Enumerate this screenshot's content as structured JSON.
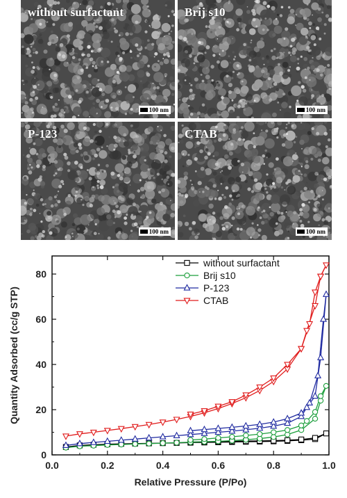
{
  "sem_panels": [
    {
      "label": "without surfactant",
      "scale": "100 nm"
    },
    {
      "label": "Brij s10",
      "scale": "100 nm"
    },
    {
      "label": "P-123",
      "scale": "100 nm"
    },
    {
      "label": "CTAB",
      "scale": "100 nm"
    }
  ],
  "chart_data": {
    "type": "line",
    "xlabel": "Relative Pressure (P/Po)",
    "ylabel": "Quantity Adsorbed (cc/g STP)",
    "xlim": [
      0.0,
      1.0
    ],
    "ylim": [
      0,
      88
    ],
    "x_ticks": [
      "0.0",
      "0.2",
      "0.4",
      "0.6",
      "0.8",
      "1.0"
    ],
    "y_ticks": [
      "0",
      "20",
      "40",
      "60",
      "80"
    ],
    "legend_position": "top-right",
    "series": [
      {
        "name": "without surfactant",
        "color": "#000000",
        "marker": "square",
        "adsorption": [
          [
            0.05,
            3.5
          ],
          [
            0.1,
            4.2
          ],
          [
            0.15,
            4.5
          ],
          [
            0.2,
            4.7
          ],
          [
            0.25,
            4.9
          ],
          [
            0.3,
            5.0
          ],
          [
            0.35,
            5.1
          ],
          [
            0.4,
            5.2
          ],
          [
            0.45,
            5.3
          ],
          [
            0.5,
            5.4
          ],
          [
            0.55,
            5.5
          ],
          [
            0.6,
            5.6
          ],
          [
            0.65,
            5.7
          ],
          [
            0.7,
            5.8
          ],
          [
            0.75,
            5.9
          ],
          [
            0.8,
            6.0
          ],
          [
            0.85,
            6.2
          ],
          [
            0.9,
            6.5
          ],
          [
            0.95,
            7.0
          ],
          [
            0.99,
            9.5
          ]
        ],
        "desorption": [
          [
            0.99,
            9.5
          ],
          [
            0.95,
            7.5
          ],
          [
            0.9,
            6.8
          ],
          [
            0.85,
            6.5
          ],
          [
            0.8,
            6.3
          ],
          [
            0.75,
            6.2
          ],
          [
            0.7,
            6.1
          ],
          [
            0.65,
            6.0
          ],
          [
            0.6,
            5.9
          ],
          [
            0.55,
            5.8
          ],
          [
            0.5,
            5.7
          ]
        ]
      },
      {
        "name": "Brij s10",
        "color": "#1a9e3a",
        "marker": "circle",
        "adsorption": [
          [
            0.05,
            3.2
          ],
          [
            0.1,
            3.8
          ],
          [
            0.15,
            4.1
          ],
          [
            0.2,
            4.4
          ],
          [
            0.25,
            4.6
          ],
          [
            0.3,
            4.8
          ],
          [
            0.35,
            5.0
          ],
          [
            0.4,
            5.2
          ],
          [
            0.45,
            5.4
          ],
          [
            0.5,
            5.6
          ],
          [
            0.55,
            5.8
          ],
          [
            0.6,
            6.0
          ],
          [
            0.65,
            6.3
          ],
          [
            0.7,
            6.7
          ],
          [
            0.75,
            7.2
          ],
          [
            0.8,
            7.9
          ],
          [
            0.85,
            9.0
          ],
          [
            0.9,
            11.0
          ],
          [
            0.95,
            16.0
          ],
          [
            0.97,
            24.0
          ],
          [
            0.99,
            30.5
          ]
        ],
        "desorption": [
          [
            0.99,
            30.5
          ],
          [
            0.97,
            26.0
          ],
          [
            0.95,
            19.0
          ],
          [
            0.92,
            15.0
          ],
          [
            0.9,
            13.0
          ],
          [
            0.85,
            11.0
          ],
          [
            0.8,
            10.0
          ],
          [
            0.75,
            9.2
          ],
          [
            0.7,
            8.6
          ],
          [
            0.65,
            8.0
          ],
          [
            0.6,
            7.5
          ],
          [
            0.55,
            7.0
          ],
          [
            0.5,
            6.6
          ]
        ]
      },
      {
        "name": "P-123",
        "color": "#1f2aa0",
        "marker": "triangle-up",
        "adsorption": [
          [
            0.05,
            4.2
          ],
          [
            0.1,
            5.0
          ],
          [
            0.15,
            5.5
          ],
          [
            0.2,
            6.0
          ],
          [
            0.25,
            6.5
          ],
          [
            0.3,
            7.0
          ],
          [
            0.35,
            7.5
          ],
          [
            0.4,
            8.0
          ],
          [
            0.45,
            8.5
          ],
          [
            0.5,
            9.0
          ],
          [
            0.55,
            9.5
          ],
          [
            0.6,
            10.0
          ],
          [
            0.65,
            10.5
          ],
          [
            0.7,
            11.1
          ],
          [
            0.75,
            11.8
          ],
          [
            0.8,
            12.7
          ],
          [
            0.85,
            14.0
          ],
          [
            0.9,
            17.0
          ],
          [
            0.93,
            23.0
          ],
          [
            0.96,
            35.0
          ],
          [
            0.98,
            60.0
          ],
          [
            0.99,
            71.0
          ]
        ],
        "desorption": [
          [
            0.99,
            71.0
          ],
          [
            0.97,
            43.0
          ],
          [
            0.95,
            26.0
          ],
          [
            0.92,
            21.0
          ],
          [
            0.9,
            18.5
          ],
          [
            0.85,
            16.0
          ],
          [
            0.8,
            14.5
          ],
          [
            0.75,
            13.5
          ],
          [
            0.7,
            12.8
          ],
          [
            0.65,
            12.2
          ],
          [
            0.6,
            11.7
          ],
          [
            0.55,
            11.2
          ],
          [
            0.5,
            10.7
          ]
        ]
      },
      {
        "name": "CTAB",
        "color": "#e01a1a",
        "marker": "triangle-down",
        "adsorption": [
          [
            0.05,
            8.3
          ],
          [
            0.1,
            9.3
          ],
          [
            0.15,
            10.0
          ],
          [
            0.2,
            10.8
          ],
          [
            0.25,
            11.6
          ],
          [
            0.3,
            12.5
          ],
          [
            0.35,
            13.4
          ],
          [
            0.4,
            14.5
          ],
          [
            0.45,
            15.7
          ],
          [
            0.5,
            17.0
          ],
          [
            0.55,
            18.6
          ],
          [
            0.6,
            20.5
          ],
          [
            0.65,
            22.7
          ],
          [
            0.7,
            25.3
          ],
          [
            0.75,
            28.5
          ],
          [
            0.8,
            32.5
          ],
          [
            0.85,
            38.0
          ],
          [
            0.9,
            47.0
          ],
          [
            0.93,
            58.0
          ],
          [
            0.95,
            72.0
          ],
          [
            0.97,
            79.0
          ],
          [
            0.99,
            84.0
          ]
        ],
        "desorption": [
          [
            0.99,
            84.0
          ],
          [
            0.97,
            79.0
          ],
          [
            0.95,
            66.0
          ],
          [
            0.92,
            55.0
          ],
          [
            0.9,
            47.0
          ],
          [
            0.85,
            40.0
          ],
          [
            0.8,
            34.0
          ],
          [
            0.75,
            30.0
          ],
          [
            0.7,
            26.5
          ],
          [
            0.65,
            23.5
          ],
          [
            0.6,
            21.5
          ],
          [
            0.55,
            19.5
          ],
          [
            0.5,
            18.0
          ]
        ]
      }
    ]
  }
}
